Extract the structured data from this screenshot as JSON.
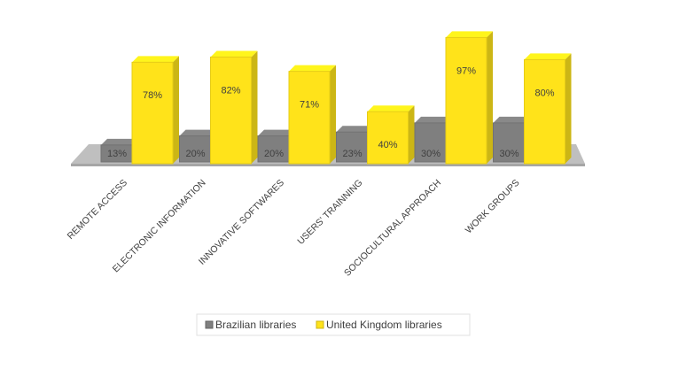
{
  "chart_data": {
    "type": "bar3d",
    "categories": [
      "REMOTE ACCESS",
      "ELECTRONIC INFORMATION",
      "INNOVATIVE SOFTWARES",
      "USERS' TRAINNING",
      "SOCIOCULTURAL APPROACH",
      "WORK GROUPS"
    ],
    "series": [
      {
        "name": "Brazilian libraries",
        "color": "#7f7f7f",
        "values": [
          13,
          20,
          20,
          23,
          30,
          30
        ],
        "value_labels": [
          "13%",
          "20%",
          "20%",
          "23%",
          "30%",
          "30%"
        ]
      },
      {
        "name": "United Kingdom libraries",
        "color": "#ffe31a",
        "values": [
          78,
          82,
          71,
          40,
          97,
          80
        ],
        "value_labels": [
          "78%",
          "82%",
          "71%",
          "40%",
          "97%",
          "80%"
        ]
      }
    ],
    "legend": "bottom"
  }
}
